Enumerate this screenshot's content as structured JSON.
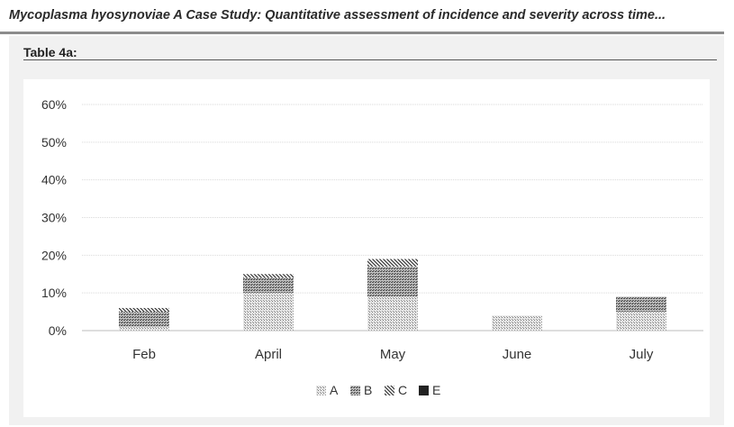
{
  "header": {
    "title": "Mycoplasma hyosynoviae A Case Study: Quantitative assessment of incidence and  severity across time..."
  },
  "table_label": "Table 4a:",
  "chart_data": {
    "type": "bar",
    "stacked": true,
    "title": "",
    "xlabel": "",
    "ylabel": "",
    "categories": [
      "Feb",
      "April",
      "May",
      "June",
      "July"
    ],
    "yticks": [
      "0%",
      "10%",
      "20%",
      "30%",
      "40%",
      "50%",
      "60%"
    ],
    "ylim": [
      0,
      60
    ],
    "grid": true,
    "legend_position": "bottom",
    "series": [
      {
        "name": "A",
        "values": [
          1,
          10,
          9,
          4,
          5
        ],
        "color": "#bdbdbd",
        "pattern": "dots-light"
      },
      {
        "name": "B",
        "values": [
          4,
          4,
          8,
          0,
          4
        ],
        "color": "#9a9a9a",
        "pattern": "dots-dark"
      },
      {
        "name": "C",
        "values": [
          1,
          1,
          2,
          0,
          0
        ],
        "color": "#555555",
        "pattern": "diagonal"
      },
      {
        "name": "E",
        "values": [
          0,
          0,
          0,
          0,
          0
        ],
        "color": "#222222",
        "pattern": "solid"
      }
    ]
  }
}
